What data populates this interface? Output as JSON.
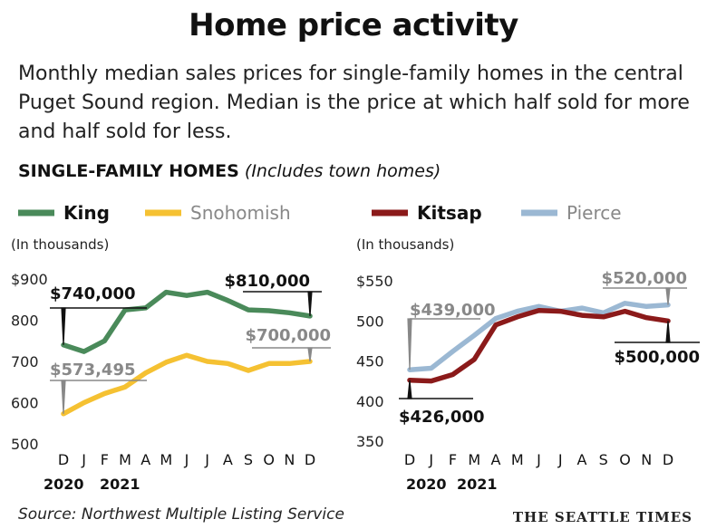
{
  "header": {
    "title": "Home price activity",
    "subtitle": "Monthly median sales prices for single-family homes in the central Puget Sound region. Median is the price at which half sold for more and half sold for less.",
    "section_bold": "SINGLE-FAMILY HOMES",
    "section_italic": "(Includes town homes)"
  },
  "footer": {
    "source": "Source: Northwest Multiple Listing Service",
    "brand": "THE SEATTLE TIMES"
  },
  "colors": {
    "King": "#4a8a5a",
    "Snohomish": "#f5c132",
    "Kitsap": "#8b1a1a",
    "Pierce": "#9bb8d3",
    "grey_text": "#888888"
  },
  "chart_data": [
    {
      "type": "line",
      "unit_label": "(In thousands)",
      "categories": [
        "D",
        "J",
        "F",
        "M",
        "A",
        "M",
        "J",
        "J",
        "A",
        "S",
        "O",
        "N",
        "D"
      ],
      "year_labels": [
        "2020",
        "2021"
      ],
      "y_ticks": [
        "$900",
        "800",
        "700",
        "600",
        "500"
      ],
      "ylim": [
        500,
        900
      ],
      "series": [
        {
          "name": "King",
          "values": [
            740,
            724,
            750,
            825,
            830,
            868,
            860,
            868,
            848,
            825,
            823,
            818,
            810
          ]
        },
        {
          "name": "Snohomish",
          "values": [
            573,
            600,
            622,
            638,
            672,
            698,
            715,
            700,
            695,
            678,
            695,
            695,
            700
          ]
        }
      ],
      "callouts": [
        {
          "series": "King",
          "point": "first",
          "text": "$740,000"
        },
        {
          "series": "King",
          "point": "last",
          "text": "$810,000"
        },
        {
          "series": "Snohomish",
          "point": "first",
          "text": "$573,495"
        },
        {
          "series": "Snohomish",
          "point": "last",
          "text": "$700,000"
        }
      ]
    },
    {
      "type": "line",
      "unit_label": "(In thousands)",
      "categories": [
        "D",
        "J",
        "F",
        "M",
        "A",
        "M",
        "J",
        "J",
        "A",
        "S",
        "O",
        "N",
        "D"
      ],
      "year_labels": [
        "2020",
        "2021"
      ],
      "y_ticks": [
        "$550",
        "500",
        "450",
        "400",
        "350"
      ],
      "ylim": [
        350,
        550
      ],
      "series": [
        {
          "name": "Kitsap",
          "values": [
            426,
            425,
            433,
            452,
            495,
            505,
            513,
            512,
            507,
            505,
            512,
            504,
            500
          ]
        },
        {
          "name": "Pierce",
          "values": [
            439,
            441,
            462,
            482,
            503,
            512,
            518,
            512,
            516,
            510,
            522,
            518,
            520
          ]
        }
      ],
      "callouts": [
        {
          "series": "Pierce",
          "point": "first",
          "text": "$439,000"
        },
        {
          "series": "Pierce",
          "point": "last",
          "text": "$520,000"
        },
        {
          "series": "Kitsap",
          "point": "first",
          "text": "$426,000"
        },
        {
          "series": "Kitsap",
          "point": "last",
          "text": "$500,000"
        }
      ]
    }
  ]
}
